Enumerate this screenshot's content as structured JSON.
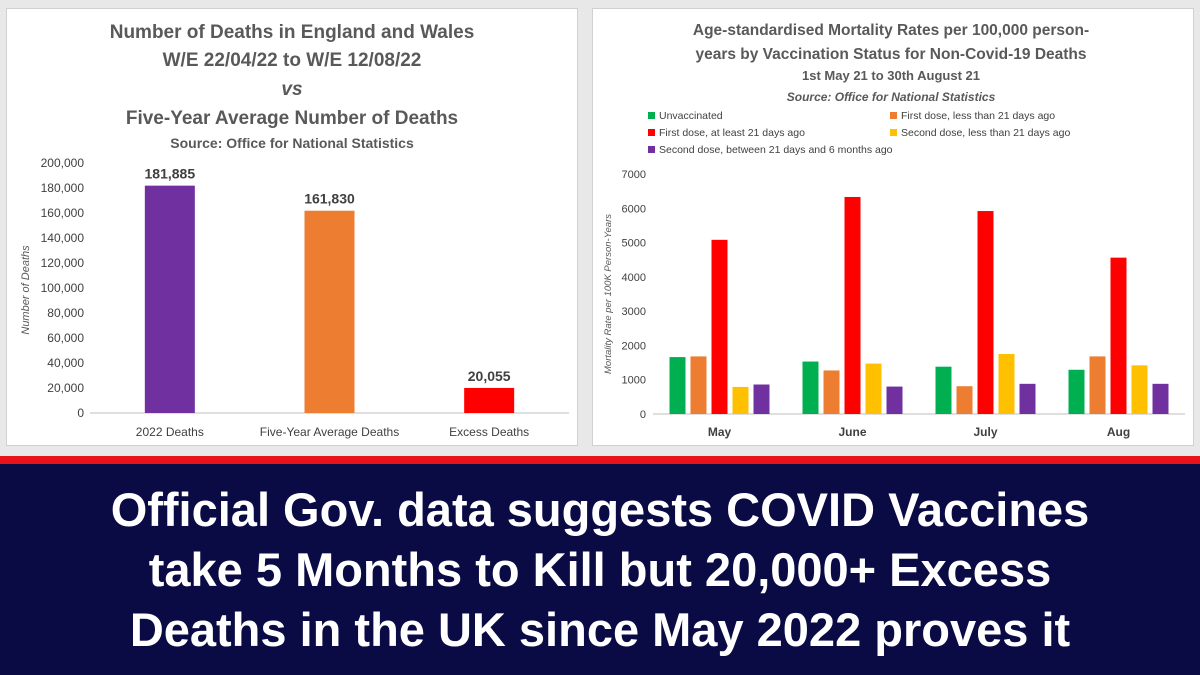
{
  "chart_data": [
    {
      "type": "bar",
      "title": [
        "Number of Deaths in England and Wales",
        "W/E 22/04/22 to W/E 12/08/22",
        "vs",
        "Five-Year Average Number of Deaths"
      ],
      "subtitle": "Source: Office for National Statistics",
      "categories": [
        "2022 Deaths",
        "Five-Year Average Deaths",
        "Excess Deaths"
      ],
      "values": [
        181885,
        161830,
        20055
      ],
      "data_labels": [
        "181,885",
        "161,830",
        "20,055"
      ],
      "colors": [
        "#7030a0",
        "#ed7d31",
        "#ff0000"
      ],
      "ylabel": "Number of Deaths",
      "xlabel": "",
      "ylim": [
        0,
        200000
      ],
      "yticks": [
        0,
        20000,
        40000,
        60000,
        80000,
        100000,
        120000,
        140000,
        160000,
        180000,
        200000
      ],
      "ytick_labels": [
        "0",
        "20,000",
        "40,000",
        "60,000",
        "80,000",
        "100,000",
        "120,000",
        "140,000",
        "160,000",
        "180,000",
        "200,000"
      ],
      "grid": false,
      "legend": "none"
    },
    {
      "type": "bar",
      "title": [
        "Age-standardised Mortality Rates per 100,000 person-",
        "years by Vaccination Status for Non-Covid-19 Deaths",
        "1st May 21 to 30th August 21"
      ],
      "subtitle": "Source: Office for National Statistics",
      "categories": [
        "May",
        "June",
        "July",
        "Aug"
      ],
      "series": [
        {
          "name": "Unvaccinated",
          "color": "#00b050",
          "values": [
            1660,
            1530,
            1380,
            1290
          ]
        },
        {
          "name": "First dose, less than 21 days ago",
          "color": "#ed7d31",
          "values": [
            1680,
            1270,
            810,
            1680
          ]
        },
        {
          "name": "First dose, at least 21 days ago",
          "color": "#ff0000",
          "values": [
            5080,
            6330,
            5920,
            4560
          ]
        },
        {
          "name": "Second dose, less than 21 days ago",
          "color": "#ffc000",
          "values": [
            790,
            1470,
            1750,
            1420
          ]
        },
        {
          "name": "Second dose, between 21 days and 6 months ago",
          "color": "#7030a0",
          "values": [
            860,
            800,
            880,
            880
          ]
        }
      ],
      "ylabel": "Mortality Rate per 100K Person-Years",
      "xlabel": "",
      "ylim": [
        0,
        7000
      ],
      "yticks": [
        0,
        1000,
        2000,
        3000,
        4000,
        5000,
        6000,
        7000
      ],
      "ytick_labels": [
        "0",
        "1000",
        "2000",
        "3000",
        "4000",
        "5000",
        "6000",
        "7000"
      ],
      "grid": false,
      "legend": "top"
    }
  ],
  "banner": {
    "lines": [
      "Official Gov. data suggests COVID Vaccines",
      "take 5 Months to Kill but 20,000+ Excess",
      "Deaths in the UK since May 2022 proves it"
    ],
    "background": "#0a0a45",
    "stripe_color": "#e8121a"
  }
}
